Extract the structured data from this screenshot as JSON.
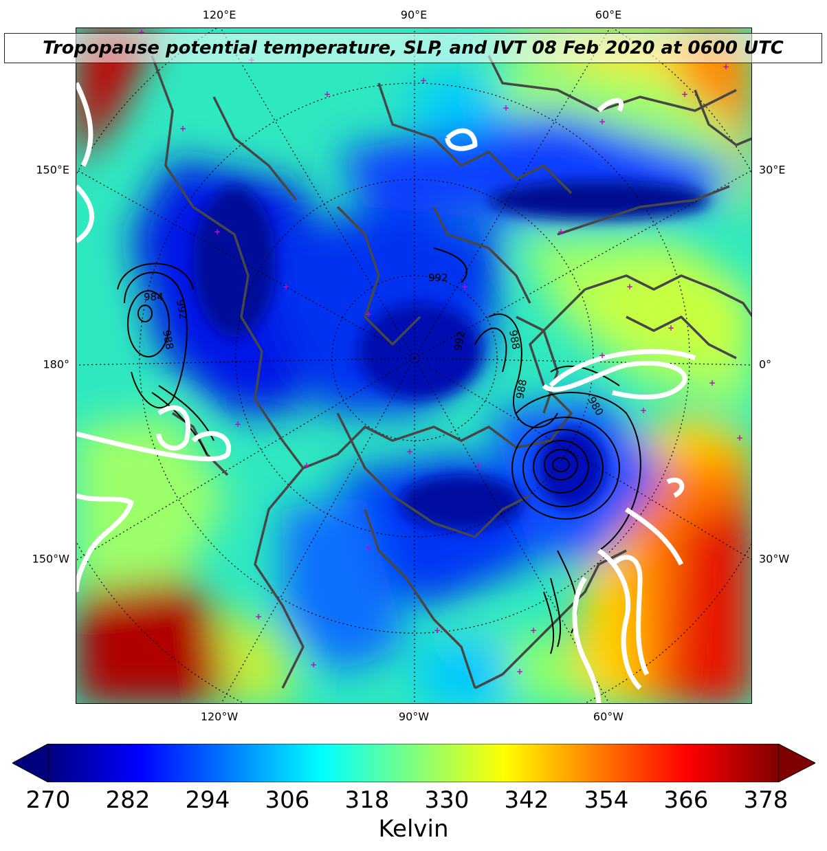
{
  "title": "Tropopause potential temperature, SLP, and IVT 08 Feb 2020 at 0600 UTC",
  "lon_labels_top": [
    "120°E",
    "90°E",
    "60°E"
  ],
  "lon_labels_bottom": [
    "120°W",
    "90°W",
    "60°W"
  ],
  "lat_labels_left": [
    "150°E",
    "180°",
    "150°W"
  ],
  "lat_labels_right": [
    "30°E",
    "0°",
    "30°W"
  ],
  "slp_contour_labels": [
    "984",
    "992",
    "988",
    "992",
    "992",
    "988",
    "988",
    "980"
  ],
  "colorbar": {
    "ticks": [
      "270",
      "282",
      "294",
      "306",
      "318",
      "330",
      "342",
      "354",
      "366",
      "378"
    ],
    "label": "Kelvin",
    "min": 270,
    "max": 378,
    "colors": [
      "#00007f",
      "#0000ff",
      "#007fff",
      "#00ffff",
      "#7fff7f",
      "#ffff00",
      "#ff7f00",
      "#ff0000",
      "#7f0000"
    ]
  },
  "colors": {
    "coast": "#474747",
    "ivt": "#ffffff",
    "slp": "#000000",
    "marker": "#cc00cc"
  }
}
